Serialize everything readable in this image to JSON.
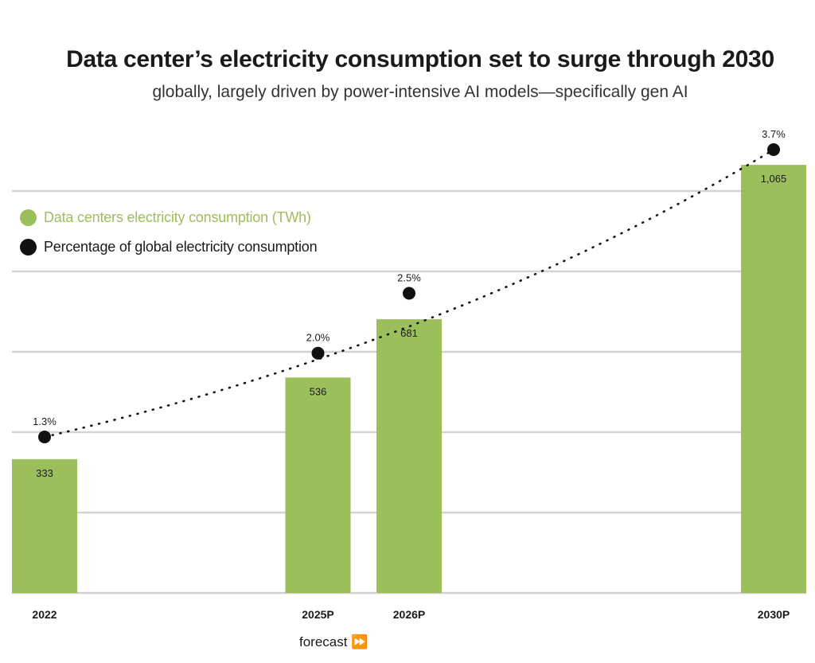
{
  "chart_data": {
    "type": "bar",
    "title": "Data center’s electricity consumption set to surge through 2030",
    "subtitle": "globally, largely driven by power-intensive AI models—specifically gen AI",
    "categories": [
      "2022",
      "2025P",
      "2026P",
      "2030P"
    ],
    "x_years": [
      2022,
      2025,
      2026,
      2030
    ],
    "series": [
      {
        "name": "Data centers electricity consumption (TWh)",
        "type": "bar",
        "values": [
          333,
          536,
          681,
          1065
        ],
        "labels": [
          "333",
          "536",
          "681",
          "1,065"
        ],
        "color": "#9bbf5a"
      },
      {
        "name": "Percentage of global electricity consumption",
        "type": "line-dotted",
        "values": [
          1.3,
          2.0,
          2.5,
          3.7
        ],
        "labels": [
          "1.3%",
          "2.0%",
          "2.5%",
          "3.7%"
        ],
        "color": "#111111"
      }
    ],
    "legend_position": "top-left",
    "grid": true,
    "annotation": "forecast",
    "annotation_icon": "fast-forward-icon"
  }
}
